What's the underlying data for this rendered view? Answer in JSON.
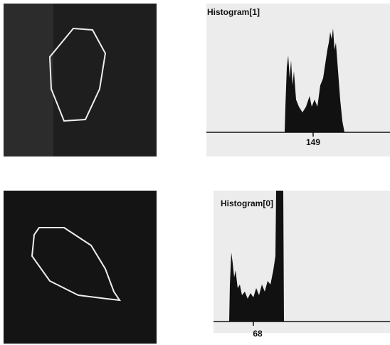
{
  "panels": [
    {
      "histogram": {
        "title": "Histogram[1]",
        "marker": 149
      }
    },
    {
      "histogram": {
        "title": "Histogram[0]",
        "marker": 68
      }
    }
  ]
}
